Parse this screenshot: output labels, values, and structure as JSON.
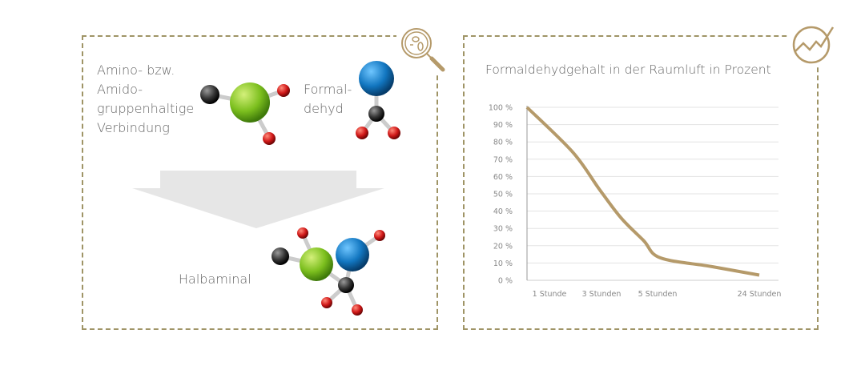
{
  "left_panel": {
    "reactant_1_label": "Amino- bzw.\nAmido-\ngruppenhaltige\nVerbindung",
    "reactant_2_label": "Formal-\ndehyd",
    "product_label": "Halbaminal",
    "icon": "magnifier-bacteria-icon"
  },
  "right_panel": {
    "icon": "trend-chart-icon"
  },
  "colors": {
    "frame": "#9f9466",
    "line": "#b59a6a",
    "arrow": "#e6e6e6"
  },
  "chart_data": {
    "type": "line",
    "title": "Formaldehydgehalt in der Raumluft in Prozent",
    "xlabel": "",
    "ylabel": "",
    "x_tick_labels": [
      {
        "hours": 1,
        "label": "1 Stunde"
      },
      {
        "hours": 3,
        "label": "3 Stunden"
      },
      {
        "hours": 5,
        "label": "5 Stunden"
      },
      {
        "hours": 24,
        "label": "24 Stunden"
      }
    ],
    "y_tick_labels": [
      "0 %",
      "10 %",
      "20 %",
      "30 %",
      "40 %",
      "50 %",
      "60 %",
      "70 %",
      "80 %",
      "90 %",
      "100 %"
    ],
    "ylim": [
      0,
      100
    ],
    "grid": true,
    "series": [
      {
        "points": [
          {
            "hours": 0,
            "value": 100
          },
          {
            "hours": 1.9,
            "value": 74
          },
          {
            "hours": 2.9,
            "value": 53
          },
          {
            "hours": 3.7,
            "value": 36
          },
          {
            "hours": 4.5,
            "value": 23
          },
          {
            "hours": 5.5,
            "value": 13
          },
          {
            "hours": 15,
            "value": 8
          },
          {
            "hours": 24,
            "value": 3
          }
        ]
      }
    ]
  }
}
